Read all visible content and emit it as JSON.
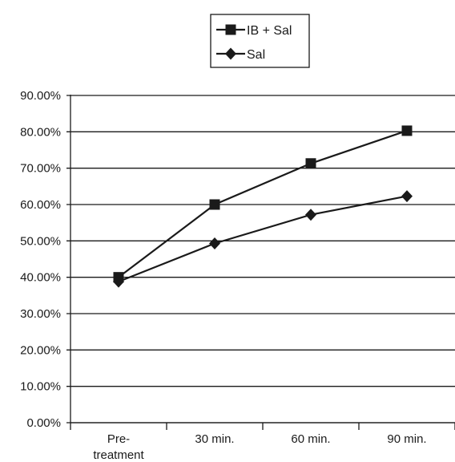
{
  "chart_data": {
    "type": "line",
    "categories": [
      "Pre-\ntreatment",
      "30 min.",
      "60 min.",
      "90 min."
    ],
    "series": [
      {
        "name": "IB + Sal",
        "marker": "square",
        "values": [
          0.4,
          0.6,
          0.713,
          0.803
        ]
      },
      {
        "name": "Sal",
        "marker": "diamond",
        "values": [
          0.388,
          0.493,
          0.572,
          0.623
        ]
      }
    ],
    "ylim": [
      0,
      0.9
    ],
    "yticks": [
      "0.00%",
      "10.00%",
      "20.00%",
      "30.00%",
      "40.00%",
      "50.00%",
      "60.00%",
      "70.00%",
      "80.00%",
      "90.00%"
    ],
    "grid": true,
    "legend": "top-center",
    "colors": {
      "line": "#1a1a1a",
      "grid": "#1a1a1a"
    }
  }
}
